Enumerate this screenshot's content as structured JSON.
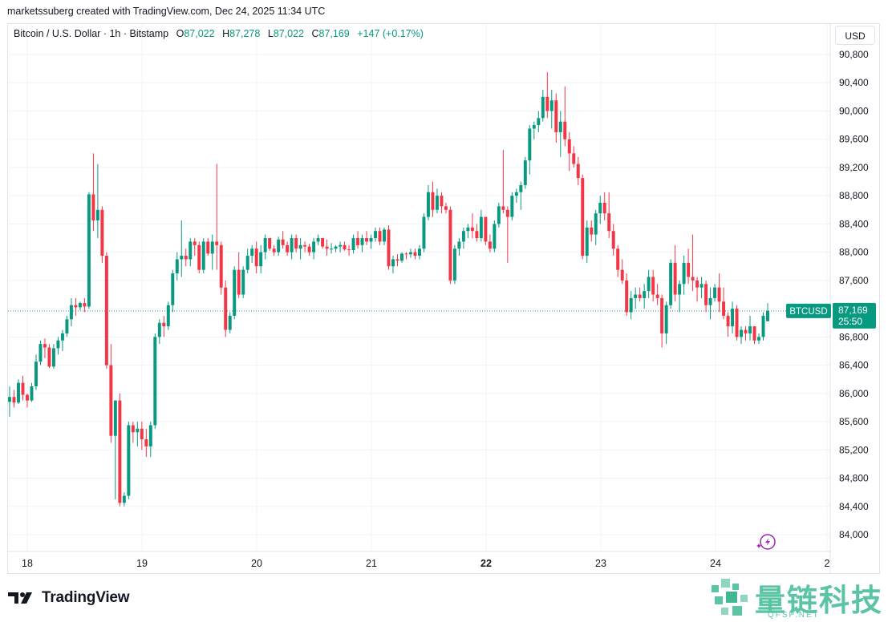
{
  "header": {
    "credit": "marketssuberg created with TradingView.com, Dec 24, 2025 11:34 UTC"
  },
  "legend": {
    "symbol": "Bitcoin / U.S. Dollar · 1h · Bitstamp",
    "o_label": "O",
    "o_value": "87,022",
    "h_label": "H",
    "h_value": "87,278",
    "l_label": "L",
    "l_value": "87,022",
    "c_label": "C",
    "c_value": "87,169",
    "change": "+147 (+0.17%)"
  },
  "currency_button": "USD",
  "price_tag": {
    "symbol": "BTCUSD",
    "price": "87,169",
    "countdown": "25:50"
  },
  "branding": {
    "logo_text": "TradingView",
    "watermark_cn": "量链科技",
    "watermark_en": "QFSP.NET"
  },
  "colors": {
    "up": "#089981",
    "down": "#f23645",
    "grid": "#f0f3fa",
    "text": "#131722",
    "watermark": "#5cc4a6"
  },
  "icons": {
    "lightning": "lightning-sparkle-icon",
    "logo": "tradingview-logo-icon"
  },
  "chart_data": {
    "type": "candlestick",
    "interval": "1h",
    "y_axis": {
      "min": 84000,
      "max": 90800,
      "ticks": [
        90800,
        90400,
        90000,
        89600,
        89200,
        88800,
        88400,
        88000,
        87600,
        87200,
        86800,
        86400,
        86000,
        85600,
        85200,
        84800,
        84400,
        84000
      ],
      "tick_labels": [
        "90,800",
        "90,400",
        "90,000",
        "89,600",
        "89,200",
        "88,800",
        "88,400",
        "88,000",
        "87,600",
        "87,200",
        "86,800",
        "86,400",
        "86,000",
        "85,600",
        "85,200",
        "84,800",
        "84,400",
        "84,000"
      ]
    },
    "x_axis": {
      "labels": [
        "18",
        "19",
        "20",
        "21",
        "22",
        "23",
        "24",
        "2"
      ],
      "bold": "22"
    },
    "last_price": 87169,
    "candles": [
      [
        85880,
        86100,
        85670,
        85950
      ],
      [
        85950,
        86050,
        85800,
        85870
      ],
      [
        85870,
        86200,
        85850,
        86150
      ],
      [
        86150,
        86250,
        85900,
        85980
      ],
      [
        85980,
        86000,
        85800,
        85900
      ],
      [
        85900,
        86150,
        85880,
        86100
      ],
      [
        86100,
        86550,
        86050,
        86450
      ],
      [
        86450,
        86750,
        86400,
        86700
      ],
      [
        86700,
        86780,
        86500,
        86650
      ],
      [
        86650,
        86700,
        86360,
        86380
      ],
      [
        86380,
        86700,
        86350,
        86640
      ],
      [
        86640,
        86800,
        86550,
        86750
      ],
      [
        86750,
        86900,
        86600,
        86850
      ],
      [
        86850,
        87100,
        86800,
        87050
      ],
      [
        87050,
        87350,
        86950,
        87250
      ],
      [
        87250,
        87350,
        87100,
        87220
      ],
      [
        87220,
        87300,
        87180,
        87280
      ],
      [
        87280,
        87350,
        87150,
        87230
      ],
      [
        87230,
        88850,
        87200,
        88820
      ],
      [
        88820,
        89400,
        88300,
        88450
      ],
      [
        88450,
        89250,
        88200,
        88600
      ],
      [
        88600,
        88650,
        87850,
        87950
      ],
      [
        87950,
        88000,
        86350,
        86400
      ],
      [
        86400,
        86700,
        85300,
        85400
      ],
      [
        85400,
        85900,
        84500,
        85900
      ],
      [
        85900,
        86000,
        84400,
        84450
      ],
      [
        84450,
        84600,
        84400,
        84550
      ],
      [
        84550,
        85600,
        84500,
        85550
      ],
      [
        85550,
        85600,
        85300,
        85450
      ],
      [
        85450,
        85600,
        85250,
        85500
      ],
      [
        85500,
        85600,
        85200,
        85350
      ],
      [
        85350,
        85500,
        85100,
        85250
      ],
      [
        85250,
        85600,
        85100,
        85550
      ],
      [
        85550,
        86850,
        85500,
        86800
      ],
      [
        86800,
        87050,
        86700,
        87000
      ],
      [
        87000,
        87100,
        86800,
        86950
      ],
      [
        86950,
        87300,
        86900,
        87250
      ],
      [
        87250,
        87750,
        87150,
        87700
      ],
      [
        87700,
        88000,
        87600,
        87900
      ],
      [
        87900,
        88450,
        87650,
        87950
      ],
      [
        87950,
        88050,
        87800,
        87900
      ],
      [
        87900,
        88200,
        87800,
        88150
      ],
      [
        88150,
        88200,
        87950,
        88100
      ],
      [
        88100,
        88150,
        87700,
        87750
      ],
      [
        87750,
        88200,
        87700,
        88150
      ],
      [
        88150,
        88200,
        87950,
        87980
      ],
      [
        87980,
        88250,
        87750,
        88150
      ],
      [
        88150,
        89250,
        87750,
        88100
      ],
      [
        88100,
        88150,
        87400,
        87500
      ],
      [
        87500,
        87600,
        86800,
        86900
      ],
      [
        86900,
        87150,
        86850,
        87100
      ],
      [
        87100,
        87800,
        87050,
        87750
      ],
      [
        87750,
        88000,
        87350,
        87400
      ],
      [
        87400,
        87800,
        87350,
        87750
      ],
      [
        87750,
        88050,
        87700,
        87950
      ],
      [
        87950,
        88100,
        87850,
        88050
      ],
      [
        88050,
        88150,
        87700,
        87800
      ],
      [
        87800,
        88100,
        87700,
        88000
      ],
      [
        88000,
        88250,
        87900,
        88200
      ],
      [
        88200,
        88200,
        88020,
        88050
      ],
      [
        88050,
        88100,
        87950,
        88000
      ],
      [
        88000,
        88220,
        87950,
        88180
      ],
      [
        88180,
        88300,
        88050,
        88100
      ],
      [
        88100,
        88150,
        87950,
        88000
      ],
      [
        88000,
        88250,
        87900,
        88200
      ],
      [
        88200,
        88250,
        88000,
        88050
      ],
      [
        88050,
        88200,
        87900,
        88100
      ],
      [
        88100,
        88150,
        88000,
        88080
      ],
      [
        88080,
        88120,
        87950,
        88000
      ],
      [
        88000,
        88200,
        87900,
        88150
      ],
      [
        88150,
        88250,
        88100,
        88200
      ],
      [
        88200,
        88200,
        88050,
        88080
      ],
      [
        88080,
        88180,
        87950,
        88050
      ],
      [
        88050,
        88130,
        87980,
        88050
      ],
      [
        88050,
        88100,
        88000,
        88080
      ],
      [
        88080,
        88150,
        88000,
        88100
      ],
      [
        88100,
        88150,
        88020,
        88040
      ],
      [
        88040,
        88100,
        87950,
        88030
      ],
      [
        88030,
        88250,
        87980,
        88200
      ],
      [
        88200,
        88300,
        88050,
        88100
      ],
      [
        88100,
        88250,
        88000,
        88200
      ],
      [
        88200,
        88300,
        88100,
        88150
      ],
      [
        88150,
        88250,
        88050,
        88200
      ],
      [
        88200,
        88350,
        88150,
        88300
      ],
      [
        88300,
        88350,
        88100,
        88150
      ],
      [
        88150,
        88350,
        88100,
        88320
      ],
      [
        88320,
        88380,
        87750,
        87800
      ],
      [
        87800,
        87950,
        87700,
        87900
      ],
      [
        87900,
        87970,
        87800,
        87880
      ],
      [
        87880,
        88000,
        87850,
        87980
      ],
      [
        87980,
        88000,
        87900,
        87970
      ],
      [
        87970,
        88050,
        87920,
        88000
      ],
      [
        88000,
        88050,
        87900,
        87950
      ],
      [
        87950,
        88100,
        87900,
        88050
      ],
      [
        88050,
        88550,
        88000,
        88500
      ],
      [
        88500,
        88950,
        88450,
        88850
      ],
      [
        88850,
        89000,
        88500,
        88600
      ],
      [
        88600,
        88900,
        88550,
        88800
      ],
      [
        88800,
        88850,
        88550,
        88650
      ],
      [
        88650,
        88700,
        88550,
        88600
      ],
      [
        88600,
        88650,
        87550,
        87600
      ],
      [
        87600,
        88100,
        87550,
        88050
      ],
      [
        88050,
        88200,
        87950,
        88150
      ],
      [
        88150,
        88350,
        88050,
        88300
      ],
      [
        88300,
        88400,
        88200,
        88350
      ],
      [
        88350,
        88550,
        88200,
        88300
      ],
      [
        88300,
        88400,
        88150,
        88200
      ],
      [
        88200,
        88600,
        88150,
        88500
      ],
      [
        88500,
        88500,
        88100,
        88150
      ],
      [
        88150,
        88250,
        88000,
        88050
      ],
      [
        88050,
        88450,
        88000,
        88400
      ],
      [
        88400,
        88700,
        88350,
        88650
      ],
      [
        88650,
        89450,
        88550,
        88600
      ],
      [
        88600,
        88650,
        87850,
        88500
      ],
      [
        88500,
        88850,
        88450,
        88800
      ],
      [
        88800,
        88900,
        88700,
        88850
      ],
      [
        88850,
        89000,
        88600,
        88950
      ],
      [
        88950,
        89350,
        88900,
        89300
      ],
      [
        89300,
        89800,
        89100,
        89750
      ],
      [
        89750,
        89850,
        89600,
        89800
      ],
      [
        89800,
        90000,
        89700,
        89900
      ],
      [
        89900,
        90300,
        89850,
        90200
      ],
      [
        90200,
        90550,
        89900,
        90000
      ],
      [
        90000,
        90300,
        89750,
        90150
      ],
      [
        90150,
        90250,
        89550,
        89700
      ],
      [
        89700,
        90000,
        89350,
        89850
      ],
      [
        89850,
        90350,
        89500,
        89600
      ],
      [
        89600,
        89700,
        89150,
        89400
      ],
      [
        89400,
        89500,
        89200,
        89250
      ],
      [
        89250,
        89350,
        88950,
        89050
      ],
      [
        89050,
        89100,
        87900,
        87950
      ],
      [
        87950,
        88450,
        87850,
        88350
      ],
      [
        88350,
        88450,
        88150,
        88250
      ],
      [
        88250,
        88600,
        88100,
        88550
      ],
      [
        88550,
        88800,
        88400,
        88700
      ],
      [
        88700,
        88850,
        88450,
        88550
      ],
      [
        88550,
        88850,
        88200,
        88300
      ],
      [
        88300,
        88400,
        87950,
        88050
      ],
      [
        88050,
        88100,
        87650,
        87750
      ],
      [
        87750,
        87900,
        87550,
        87600
      ],
      [
        87600,
        87700,
        87100,
        87150
      ],
      [
        87150,
        87450,
        87050,
        87350
      ],
      [
        87350,
        87500,
        87200,
        87400
      ],
      [
        87400,
        87500,
        87300,
        87350
      ],
      [
        87350,
        87550,
        87200,
        87450
      ],
      [
        87450,
        87750,
        87350,
        87650
      ],
      [
        87650,
        87750,
        87300,
        87400
      ],
      [
        87400,
        87550,
        87250,
        87350
      ],
      [
        87350,
        87400,
        86650,
        86850
      ],
      [
        86850,
        87300,
        86700,
        87250
      ],
      [
        87250,
        87900,
        87200,
        87850
      ],
      [
        87850,
        88100,
        87300,
        87400
      ],
      [
        87400,
        87600,
        87150,
        87550
      ],
      [
        87550,
        87950,
        87400,
        87850
      ],
      [
        87850,
        88050,
        87550,
        87650
      ],
      [
        87650,
        88250,
        87450,
        87600
      ],
      [
        87600,
        87650,
        87300,
        87500
      ],
      [
        87500,
        87650,
        87350,
        87550
      ],
      [
        87550,
        87600,
        87150,
        87250
      ],
      [
        87250,
        87500,
        87050,
        87350
      ],
      [
        87350,
        87550,
        87300,
        87500
      ],
      [
        87500,
        87700,
        87150,
        87300
      ],
      [
        87300,
        87500,
        87050,
        87100
      ],
      [
        87100,
        87150,
        86800,
        86950
      ],
      [
        86950,
        87300,
        86850,
        87200
      ],
      [
        87200,
        87250,
        86750,
        86800
      ],
      [
        86800,
        86950,
        86700,
        86900
      ],
      [
        86900,
        86950,
        86750,
        86850
      ],
      [
        86850,
        87100,
        86750,
        86950
      ],
      [
        86950,
        86950,
        86700,
        86750
      ],
      [
        86750,
        86850,
        86700,
        86800
      ],
      [
        86800,
        87150,
        86750,
        87100
      ],
      [
        87022,
        87278,
        87022,
        87169
      ]
    ]
  }
}
